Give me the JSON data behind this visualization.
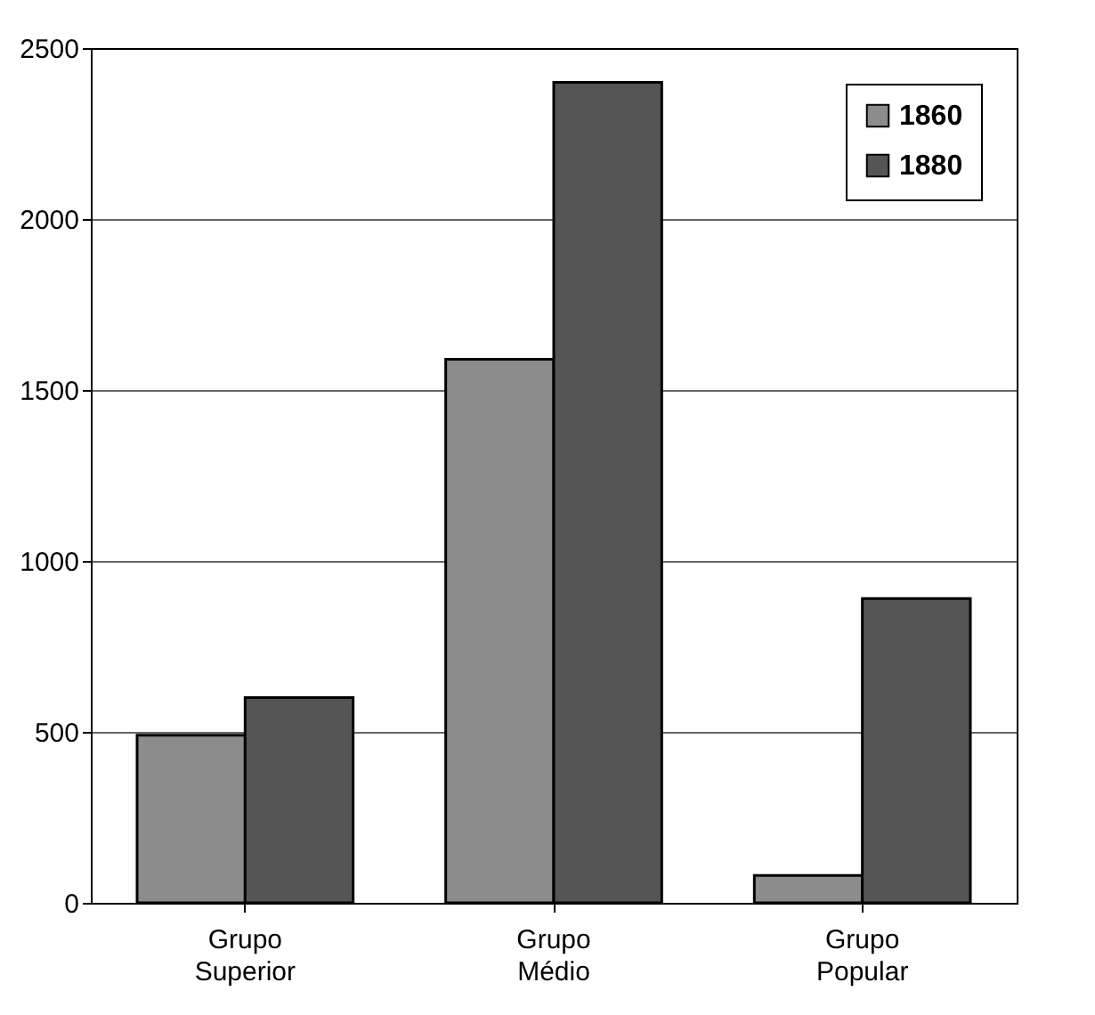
{
  "chart_data": {
    "type": "bar",
    "categories": [
      "Grupo\nSuperior",
      "Grupo\nMédio",
      "Grupo\nPopular"
    ],
    "series": [
      {
        "name": "1860",
        "color": "#8c8c8c",
        "values": [
          490,
          1590,
          80
        ]
      },
      {
        "name": "1880",
        "color": "#555555",
        "values": [
          600,
          2400,
          890
        ]
      }
    ],
    "ylim": [
      0,
      2500
    ],
    "yticks": [
      0,
      500,
      1000,
      1500,
      2000,
      2500
    ],
    "grid": "y",
    "legend": "top right"
  }
}
